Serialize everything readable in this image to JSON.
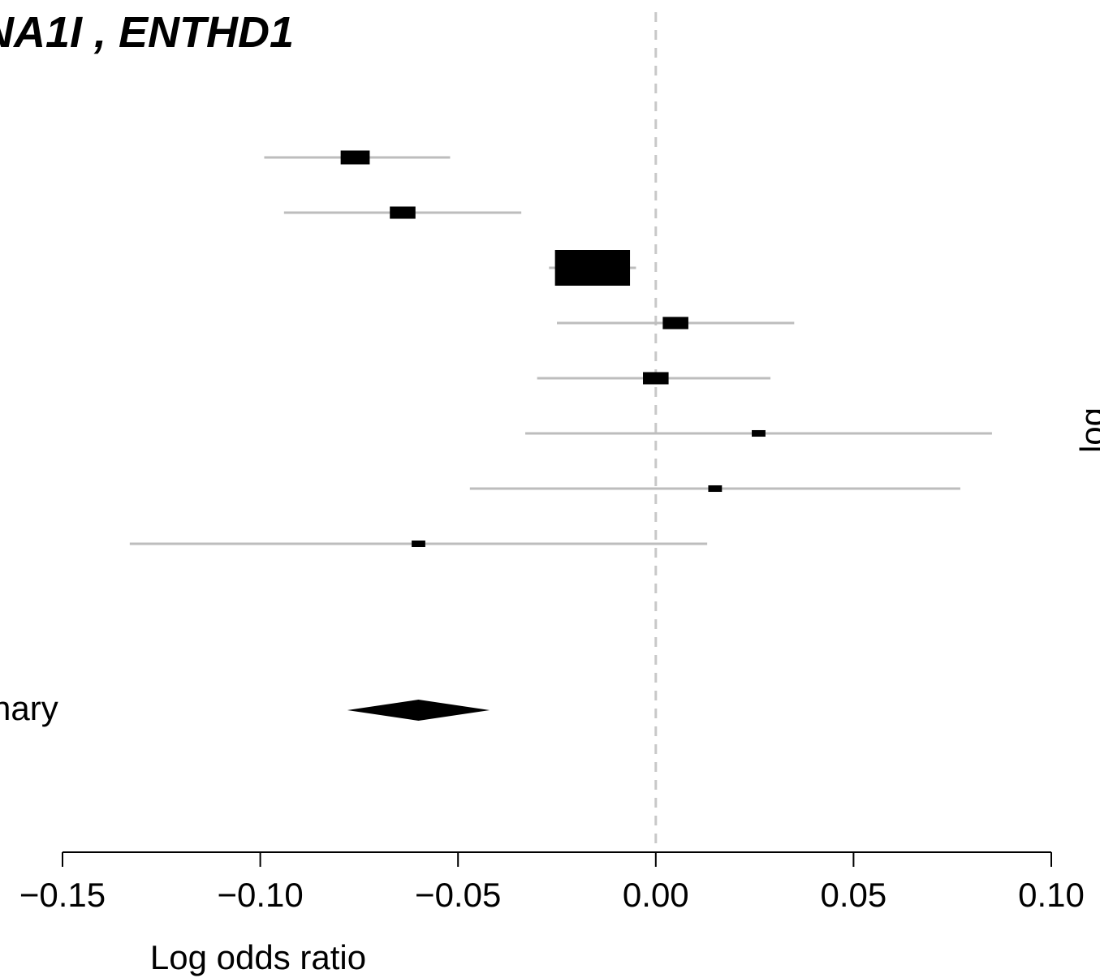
{
  "chart_data": {
    "type": "forest",
    "title": "NA1I , ENTHD1",
    "xlabel": "Log odds ratio",
    "xlim": [
      -0.15,
      0.1
    ],
    "ticks": [
      -0.15,
      -0.1,
      -0.05,
      0.0,
      0.05,
      0.1
    ],
    "tick_labels": [
      "−0.15",
      "−0.10",
      "−0.05",
      "0.00",
      "0.05",
      "0.10"
    ],
    "reference_line": 0.0,
    "studies": [
      {
        "estimate": -0.076,
        "lower": -0.099,
        "upper": -0.052,
        "weight": 0.09
      },
      {
        "estimate": -0.064,
        "lower": -0.094,
        "upper": -0.034,
        "weight": 0.07
      },
      {
        "estimate": -0.016,
        "lower": -0.027,
        "upper": -0.005,
        "weight": 0.6
      },
      {
        "estimate": 0.005,
        "lower": -0.025,
        "upper": 0.035,
        "weight": 0.07
      },
      {
        "estimate": 0.0,
        "lower": -0.03,
        "upper": 0.029,
        "weight": 0.07
      },
      {
        "estimate": 0.026,
        "lower": -0.033,
        "upper": 0.085,
        "weight": 0.02
      },
      {
        "estimate": 0.015,
        "lower": -0.047,
        "upper": 0.077,
        "weight": 0.02
      },
      {
        "estimate": -0.06,
        "lower": -0.133,
        "upper": 0.013,
        "weight": 0.01
      }
    ],
    "summary": {
      "label": "nary",
      "estimate": -0.06,
      "lower": -0.078,
      "upper": -0.042
    },
    "right_edge_text": "log"
  }
}
